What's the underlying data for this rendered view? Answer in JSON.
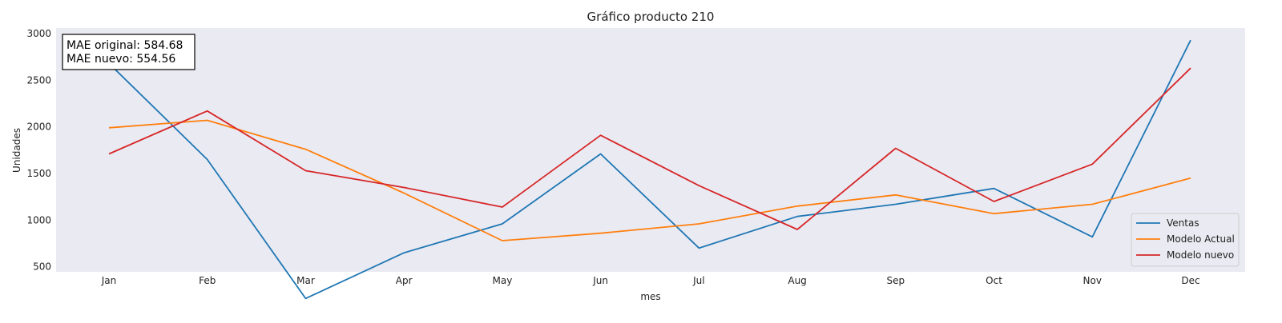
{
  "chart_data": {
    "type": "line",
    "title": "Gráfico producto 210",
    "xlabel": "mes",
    "ylabel": "Unidades",
    "categories": [
      "Jan",
      "Feb",
      "Mar",
      "Apr",
      "May",
      "Jun",
      "Jul",
      "Aug",
      "Sep",
      "Oct",
      "Nov",
      "Dec"
    ],
    "ylim": [
      0,
      3000
    ],
    "yticks": [
      500,
      1000,
      1500,
      2000,
      2500,
      3000
    ],
    "grid": false,
    "legend_position": "bottom-right",
    "series": [
      {
        "name": "Ventas",
        "color": "#1f77b4",
        "values": [
          2680,
          1650,
          160,
          650,
          960,
          1710,
          700,
          1040,
          1170,
          1340,
          820,
          2930
        ]
      },
      {
        "name": "Modelo Actual",
        "color": "#ff7f0e",
        "values": [
          1990,
          2070,
          1760,
          1290,
          780,
          860,
          960,
          1150,
          1270,
          1070,
          1170,
          1450
        ]
      },
      {
        "name": "Modelo nuevo",
        "color": "#d62728",
        "values": [
          1710,
          2170,
          1530,
          1350,
          1140,
          1910,
          1370,
          900,
          1770,
          1200,
          1600,
          2630
        ]
      }
    ],
    "annotation": {
      "lines": [
        "MAE original: 584.68",
        "MAE nuevo: 554.56"
      ]
    }
  }
}
